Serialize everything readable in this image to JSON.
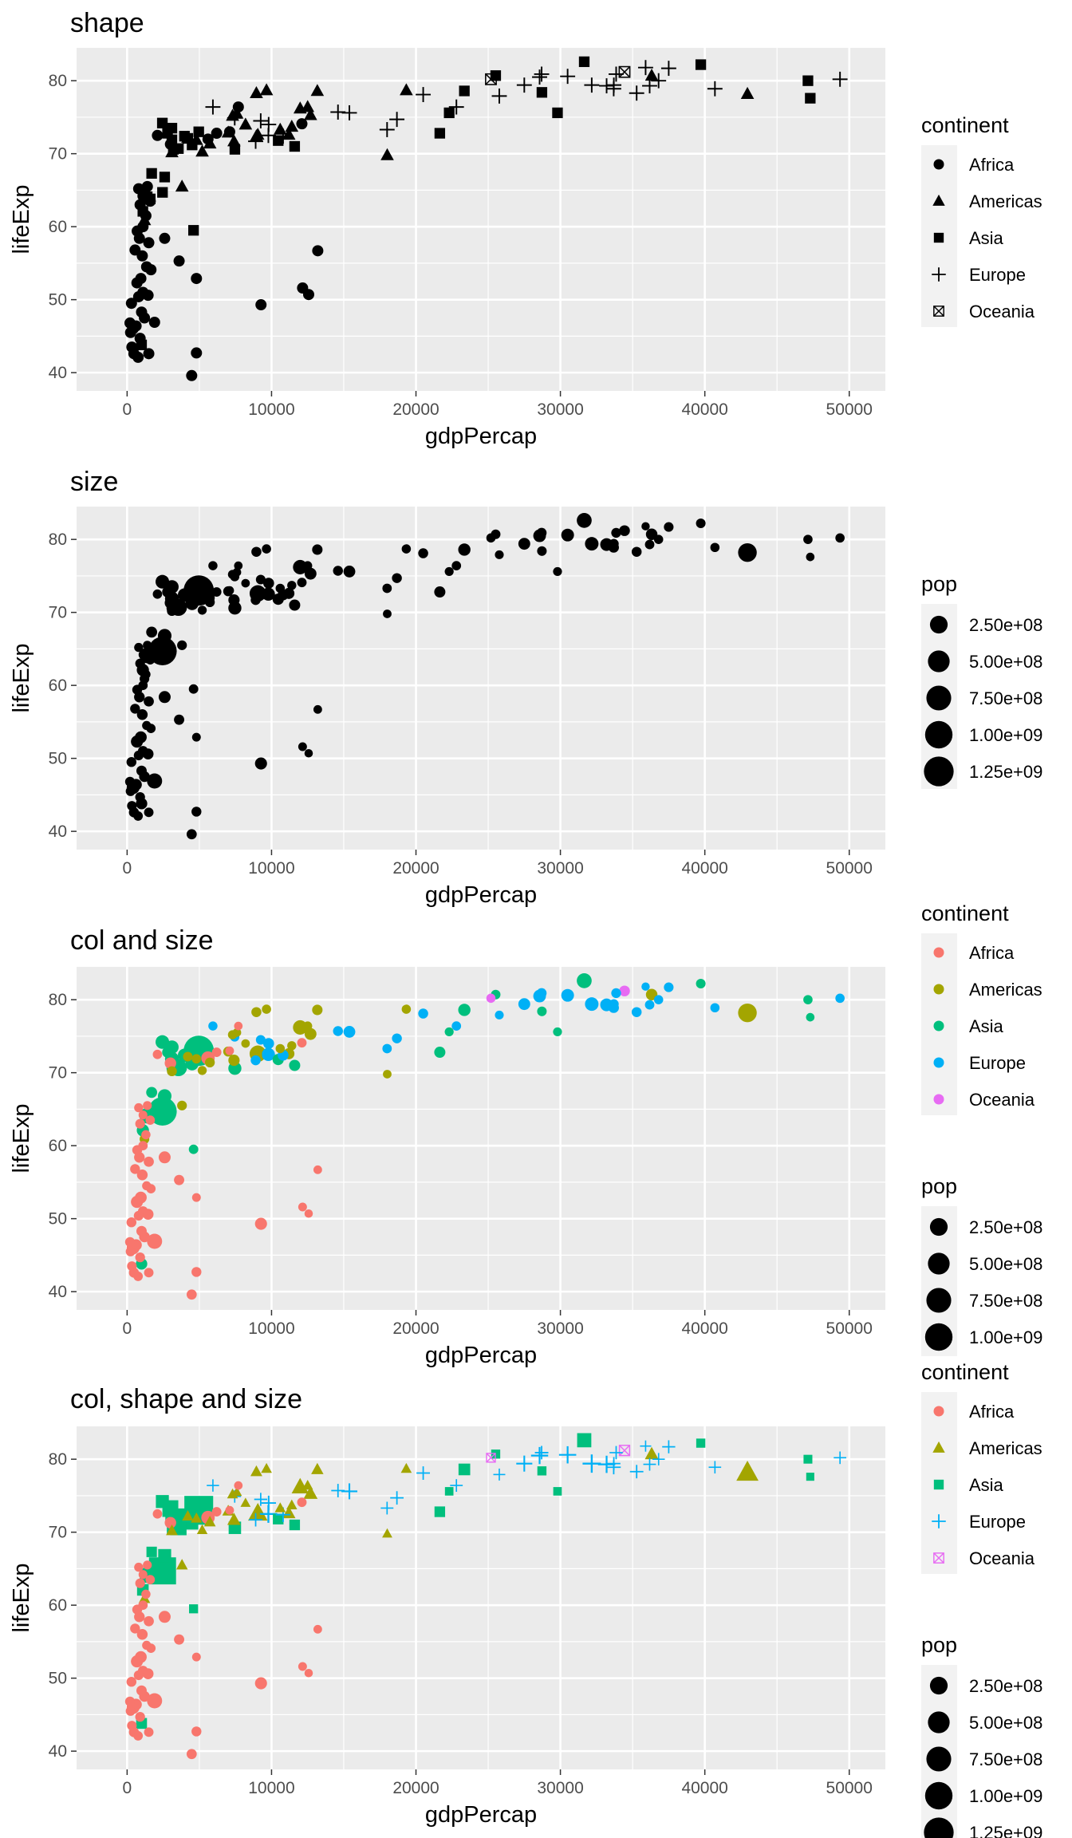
{
  "continents": [
    "Africa",
    "Americas",
    "Asia",
    "Europe",
    "Oceania"
  ],
  "colors": {
    "Africa": "#F8766D",
    "Americas": "#A3A500",
    "Asia": "#00BF7D",
    "Europe": "#00B0F6",
    "Oceania": "#E76BF3",
    "mono": "#000000",
    "panel_bg": "#EBEBEB",
    "grid": "#FFFFFF"
  },
  "shapes": {
    "Africa": "circle",
    "Americas": "triangle",
    "Asia": "square",
    "Europe": "plus",
    "Oceania": "square-cross"
  },
  "legends": {
    "continent_title": "continent",
    "pop_title": "pop",
    "pop_breaks": [
      250000000,
      500000000,
      750000000,
      1000000000,
      1250000000
    ],
    "pop_labels": [
      "2.50e+08",
      "5.00e+08",
      "7.50e+08",
      "1.00e+09",
      "1.25e+09"
    ],
    "pop_labels_short": [
      "2.50e+08",
      "5.00e+08",
      "7.50e+08",
      "1.00e+09"
    ]
  },
  "chart_data": [
    {
      "type": "scatter",
      "title": "shape",
      "xlabel": "gdpPercap",
      "ylabel": "lifeExp",
      "xlim": [
        -3500,
        52500
      ],
      "ylim": [
        37.5,
        84.5
      ],
      "x_ticks": [
        0,
        10000,
        20000,
        30000,
        40000,
        50000
      ],
      "x_tick_labels": [
        "0",
        "10000",
        "20000",
        "30000",
        "40000",
        "50000"
      ],
      "y_ticks": [
        40,
        50,
        60,
        70,
        80
      ],
      "y_tick_labels": [
        "40",
        "50",
        "60",
        "70",
        "80"
      ],
      "aesthetics": {
        "color": false,
        "shape": true,
        "size": false
      },
      "legend": "right",
      "grid": true
    },
    {
      "type": "scatter",
      "title": "size",
      "xlabel": "gdpPercap",
      "ylabel": "lifeExp",
      "xlim": [
        -3500,
        52500
      ],
      "ylim": [
        37.5,
        84.5
      ],
      "x_ticks": [
        0,
        10000,
        20000,
        30000,
        40000,
        50000
      ],
      "x_tick_labels": [
        "0",
        "10000",
        "20000",
        "30000",
        "40000",
        "50000"
      ],
      "y_ticks": [
        40,
        50,
        60,
        70,
        80
      ],
      "y_tick_labels": [
        "40",
        "50",
        "60",
        "70",
        "80"
      ],
      "aesthetics": {
        "color": false,
        "shape": false,
        "size": true
      },
      "legend": "right",
      "grid": true
    },
    {
      "type": "scatter",
      "title": "col and size",
      "xlabel": "gdpPercap",
      "ylabel": "lifeExp",
      "xlim": [
        -3500,
        52500
      ],
      "ylim": [
        37.5,
        84.5
      ],
      "x_ticks": [
        0,
        10000,
        20000,
        30000,
        40000,
        50000
      ],
      "x_tick_labels": [
        "0",
        "10000",
        "20000",
        "30000",
        "40000",
        "50000"
      ],
      "y_ticks": [
        40,
        50,
        60,
        70,
        80
      ],
      "y_tick_labels": [
        "40",
        "50",
        "60",
        "70",
        "80"
      ],
      "aesthetics": {
        "color": true,
        "shape": false,
        "size": true
      },
      "legend": "right",
      "grid": true
    },
    {
      "type": "scatter",
      "title": "col, shape and size",
      "xlabel": "gdpPercap",
      "ylabel": "lifeExp",
      "xlim": [
        -3500,
        52500
      ],
      "ylim": [
        37.5,
        84.5
      ],
      "x_ticks": [
        0,
        10000,
        20000,
        30000,
        40000,
        50000
      ],
      "x_tick_labels": [
        "0",
        "10000",
        "20000",
        "30000",
        "40000",
        "50000"
      ],
      "y_ticks": [
        40,
        50,
        60,
        70,
        80
      ],
      "y_tick_labels": [
        "40",
        "50",
        "60",
        "70",
        "80"
      ],
      "aesthetics": {
        "color": true,
        "shape": true,
        "size": true
      },
      "legend": "right",
      "grid": true
    }
  ],
  "points": [
    {
      "c": "Africa",
      "x": 4470,
      "y": 39.6,
      "pop": 12400000
    },
    {
      "c": "Africa",
      "x": 4800,
      "y": 42.7,
      "pop": 10000000
    },
    {
      "c": "Africa",
      "x": 470,
      "y": 42.6,
      "pop": 11000000
    },
    {
      "c": "Africa",
      "x": 760,
      "y": 42.1,
      "pop": 5700000
    },
    {
      "c": "Africa",
      "x": 1500,
      "y": 42.6,
      "pop": 6100000
    },
    {
      "c": "Africa",
      "x": 330,
      "y": 43.5,
      "pop": 7000000
    },
    {
      "c": "Africa",
      "x": 900,
      "y": 44.7,
      "pop": 9000000
    },
    {
      "c": "Africa",
      "x": 240,
      "y": 45.5,
      "pop": 8000000
    },
    {
      "c": "Africa",
      "x": 415,
      "y": 46.0,
      "pop": 64000000
    },
    {
      "c": "Africa",
      "x": 620,
      "y": 46.4,
      "pop": 33000000
    },
    {
      "c": "Africa",
      "x": 200,
      "y": 46.8,
      "pop": 9000000
    },
    {
      "c": "Africa",
      "x": 1200,
      "y": 47.5,
      "pop": 20000000
    },
    {
      "c": "Africa",
      "x": 1900,
      "y": 46.9,
      "pop": 135000000
    },
    {
      "c": "Africa",
      "x": 1000,
      "y": 48.3,
      "pop": 15000000
    },
    {
      "c": "Africa",
      "x": 300,
      "y": 49.5,
      "pop": 10000000
    },
    {
      "c": "Africa",
      "x": 800,
      "y": 50.4,
      "pop": 8500000
    },
    {
      "c": "Africa",
      "x": 1100,
      "y": 51.0,
      "pop": 12000000
    },
    {
      "c": "Africa",
      "x": 1450,
      "y": 50.6,
      "pop": 23000000
    },
    {
      "c": "Africa",
      "x": 680,
      "y": 52.3,
      "pop": 44000000
    },
    {
      "c": "Africa",
      "x": 950,
      "y": 52.9,
      "pop": 38000000
    },
    {
      "c": "Africa",
      "x": 4800,
      "y": 52.9,
      "pop": 1600000
    },
    {
      "c": "Africa",
      "x": 1650,
      "y": 54.1,
      "pop": 4500000
    },
    {
      "c": "Africa",
      "x": 1350,
      "y": 54.5,
      "pop": 3100000
    },
    {
      "c": "Africa",
      "x": 3600,
      "y": 55.3,
      "pop": 14000000
    },
    {
      "c": "Africa",
      "x": 1050,
      "y": 56.0,
      "pop": 20000000
    },
    {
      "c": "Africa",
      "x": 550,
      "y": 56.8,
      "pop": 9500000
    },
    {
      "c": "Africa",
      "x": 13200,
      "y": 56.7,
      "pop": 1100000
    },
    {
      "c": "Africa",
      "x": 1500,
      "y": 57.8,
      "pop": 12500000
    },
    {
      "c": "Africa",
      "x": 850,
      "y": 58.4,
      "pop": 19000000
    },
    {
      "c": "Africa",
      "x": 2600,
      "y": 58.4,
      "pop": 42000000
    },
    {
      "c": "Africa",
      "x": 700,
      "y": 59.4,
      "pop": 10000000
    },
    {
      "c": "Africa",
      "x": 1100,
      "y": 60.0,
      "pop": 5300000
    },
    {
      "c": "Africa",
      "x": 9270,
      "y": 49.3,
      "pop": 44000000
    },
    {
      "c": "Africa",
      "x": 12150,
      "y": 51.6,
      "pop": 1500000
    },
    {
      "c": "Africa",
      "x": 12570,
      "y": 50.7,
      "pop": 500000
    },
    {
      "c": "Africa",
      "x": 1300,
      "y": 61.5,
      "pop": 4000000
    },
    {
      "c": "Africa",
      "x": 900,
      "y": 63.0,
      "pop": 8000000
    },
    {
      "c": "Africa",
      "x": 1600,
      "y": 63.5,
      "pop": 5000000
    },
    {
      "c": "Africa",
      "x": 1100,
      "y": 64.2,
      "pop": 2000000
    },
    {
      "c": "Africa",
      "x": 800,
      "y": 65.2,
      "pop": 3000000
    },
    {
      "c": "Africa",
      "x": 1400,
      "y": 65.5,
      "pop": 2500000
    },
    {
      "c": "Africa",
      "x": 3000,
      "y": 71.3,
      "pop": 33000000
    },
    {
      "c": "Africa",
      "x": 5600,
      "y": 72.0,
      "pop": 80000000
    },
    {
      "c": "Africa",
      "x": 6200,
      "y": 72.8,
      "pop": 6000000
    },
    {
      "c": "Africa",
      "x": 7100,
      "y": 73.0,
      "pop": 1200000
    },
    {
      "c": "Africa",
      "x": 12100,
      "y": 74.1,
      "pop": 6000000
    },
    {
      "c": "Africa",
      "x": 7700,
      "y": 76.4,
      "pop": 800000
    },
    {
      "c": "Africa",
      "x": 2100,
      "y": 72.5,
      "pop": 5000000
    },
    {
      "c": "Americas",
      "x": 5730,
      "y": 71.4,
      "pop": 9000000
    },
    {
      "c": "Americas",
      "x": 7000,
      "y": 72.9,
      "pop": 11000000
    },
    {
      "c": "Americas",
      "x": 3800,
      "y": 65.5,
      "pop": 8500000
    },
    {
      "c": "Americas",
      "x": 1200,
      "y": 60.9,
      "pop": 8000000
    },
    {
      "c": "Americas",
      "x": 3100,
      "y": 70.2,
      "pop": 10000000
    },
    {
      "c": "Americas",
      "x": 4200,
      "y": 72.2,
      "pop": 7000000
    },
    {
      "c": "Americas",
      "x": 4800,
      "y": 71.9,
      "pop": 6000000
    },
    {
      "c": "Americas",
      "x": 5200,
      "y": 70.3,
      "pop": 3000000
    },
    {
      "c": "Americas",
      "x": 7400,
      "y": 71.7,
      "pop": 29000000
    },
    {
      "c": "Americas",
      "x": 7300,
      "y": 75.2,
      "pop": 3900000
    },
    {
      "c": "Americas",
      "x": 8950,
      "y": 72.4,
      "pop": 28000000
    },
    {
      "c": "Americas",
      "x": 9050,
      "y": 72.6,
      "pop": 190000000
    },
    {
      "c": "Americas",
      "x": 9650,
      "y": 78.7,
      "pop": 4100000
    },
    {
      "c": "Americas",
      "x": 8950,
      "y": 78.3,
      "pop": 11000000
    },
    {
      "c": "Americas",
      "x": 10600,
      "y": 73.3,
      "pop": 4000000
    },
    {
      "c": "Americas",
      "x": 11400,
      "y": 73.7,
      "pop": 3400000
    },
    {
      "c": "Americas",
      "x": 11980,
      "y": 76.2,
      "pop": 108000000
    },
    {
      "c": "Americas",
      "x": 12700,
      "y": 75.3,
      "pop": 40000000
    },
    {
      "c": "Americas",
      "x": 13170,
      "y": 78.6,
      "pop": 16000000
    },
    {
      "c": "Americas",
      "x": 12500,
      "y": 76.4,
      "pop": 3300000
    },
    {
      "c": "Americas",
      "x": 11200,
      "y": 72.6,
      "pop": 26000000
    },
    {
      "c": "Americas",
      "x": 18010,
      "y": 69.8,
      "pop": 1100000
    },
    {
      "c": "Americas",
      "x": 19330,
      "y": 78.7,
      "pop": 3900000
    },
    {
      "c": "Americas",
      "x": 36320,
      "y": 80.7,
      "pop": 33000000
    },
    {
      "c": "Americas",
      "x": 42950,
      "y": 78.2,
      "pop": 301000000
    },
    {
      "c": "Americas",
      "x": 7600,
      "y": 75.5,
      "pop": 1000000
    },
    {
      "c": "Americas",
      "x": 8200,
      "y": 74.0,
      "pop": 900000
    },
    {
      "c": "Asia",
      "x": 2450,
      "y": 64.7,
      "pop": 1110000000
    },
    {
      "c": "Asia",
      "x": 4960,
      "y": 73.0,
      "pop": 1318000000
    },
    {
      "c": "Asia",
      "x": 1390,
      "y": 64.1,
      "pop": 150000000
    },
    {
      "c": "Asia",
      "x": 1090,
      "y": 62.1,
      "pop": 47000000
    },
    {
      "c": "Asia",
      "x": 1600,
      "y": 63.8,
      "pop": 28000000
    },
    {
      "c": "Asia",
      "x": 2600,
      "y": 66.8,
      "pop": 85000000
    },
    {
      "c": "Asia",
      "x": 1700,
      "y": 67.3,
      "pop": 24000000
    },
    {
      "c": "Asia",
      "x": 2800,
      "y": 72.8,
      "pop": 22000000
    },
    {
      "c": "Asia",
      "x": 3200,
      "y": 70.6,
      "pop": 86000000
    },
    {
      "c": "Asia",
      "x": 2440,
      "y": 74.2,
      "pop": 85000000
    },
    {
      "c": "Asia",
      "x": 3550,
      "y": 70.7,
      "pop": 224000000
    },
    {
      "c": "Asia",
      "x": 4500,
      "y": 71.2,
      "pop": 65000000
    },
    {
      "c": "Asia",
      "x": 3100,
      "y": 71.9,
      "pop": 90000000
    },
    {
      "c": "Asia",
      "x": 4600,
      "y": 59.5,
      "pop": 6000000
    },
    {
      "c": "Asia",
      "x": 3970,
      "y": 72.4,
      "pop": 70000000
    },
    {
      "c": "Asia",
      "x": 7460,
      "y": 70.6,
      "pop": 69000000
    },
    {
      "c": "Asia",
      "x": 10460,
      "y": 71.8,
      "pop": 28000000
    },
    {
      "c": "Asia",
      "x": 11600,
      "y": 71.0,
      "pop": 27000000
    },
    {
      "c": "Asia",
      "x": 4200,
      "y": 72.1,
      "pop": 20000000
    },
    {
      "c": "Asia",
      "x": 21650,
      "y": 72.8,
      "pop": 27000000
    },
    {
      "c": "Asia",
      "x": 22300,
      "y": 75.6,
      "pop": 2500000
    },
    {
      "c": "Asia",
      "x": 23350,
      "y": 78.6,
      "pop": 49000000
    },
    {
      "c": "Asia",
      "x": 25520,
      "y": 80.7,
      "pop": 6400000
    },
    {
      "c": "Asia",
      "x": 28720,
      "y": 78.4,
      "pop": 6900000
    },
    {
      "c": "Asia",
      "x": 29800,
      "y": 75.6,
      "pop": 2500000
    },
    {
      "c": "Asia",
      "x": 31650,
      "y": 82.6,
      "pop": 127000000
    },
    {
      "c": "Asia",
      "x": 39720,
      "y": 82.2,
      "pop": 6980000
    },
    {
      "c": "Asia",
      "x": 47140,
      "y": 80.0,
      "pop": 4500000
    },
    {
      "c": "Asia",
      "x": 47300,
      "y": 77.6,
      "pop": 700000
    },
    {
      "c": "Asia",
      "x": 1000,
      "y": 43.8,
      "pop": 31000000
    },
    {
      "c": "Asia",
      "x": 3100,
      "y": 73.5,
      "pop": 80000000
    },
    {
      "c": "Europe",
      "x": 5940,
      "y": 76.4,
      "pop": 3600000
    },
    {
      "c": "Europe",
      "x": 7450,
      "y": 74.9,
      "pop": 4500000
    },
    {
      "c": "Europe",
      "x": 8900,
      "y": 71.7,
      "pop": 10000000
    },
    {
      "c": "Europe",
      "x": 9250,
      "y": 74.5,
      "pop": 7300000
    },
    {
      "c": "Europe",
      "x": 9800,
      "y": 74.0,
      "pop": 22000000
    },
    {
      "c": "Europe",
      "x": 9780,
      "y": 72.5,
      "pop": 71000000
    },
    {
      "c": "Europe",
      "x": 10800,
      "y": 72.4,
      "pop": 22000000
    },
    {
      "c": "Europe",
      "x": 14600,
      "y": 75.7,
      "pop": 10200000
    },
    {
      "c": "Europe",
      "x": 15390,
      "y": 75.6,
      "pop": 38500000
    },
    {
      "c": "Europe",
      "x": 18000,
      "y": 73.3,
      "pop": 5400000
    },
    {
      "c": "Europe",
      "x": 18680,
      "y": 74.7,
      "pop": 10000000
    },
    {
      "c": "Europe",
      "x": 20500,
      "y": 78.1,
      "pop": 10600000
    },
    {
      "c": "Europe",
      "x": 22800,
      "y": 76.4,
      "pop": 5000000
    },
    {
      "c": "Europe",
      "x": 25770,
      "y": 77.9,
      "pop": 2000000
    },
    {
      "c": "Europe",
      "x": 27500,
      "y": 79.4,
      "pop": 40000000
    },
    {
      "c": "Europe",
      "x": 28560,
      "y": 80.5,
      "pop": 58000000
    },
    {
      "c": "Europe",
      "x": 28700,
      "y": 80.9,
      "pop": 10700000
    },
    {
      "c": "Europe",
      "x": 30500,
      "y": 80.6,
      "pop": 60000000
    },
    {
      "c": "Europe",
      "x": 32170,
      "y": 79.4,
      "pop": 82000000
    },
    {
      "c": "Europe",
      "x": 33200,
      "y": 79.3,
      "pop": 60800000
    },
    {
      "c": "Europe",
      "x": 33700,
      "y": 79.4,
      "pop": 8200000
    },
    {
      "c": "Europe",
      "x": 33860,
      "y": 80.9,
      "pop": 9000000
    },
    {
      "c": "Europe",
      "x": 33690,
      "y": 78.9,
      "pop": 16600000
    },
    {
      "c": "Europe",
      "x": 35280,
      "y": 78.3,
      "pop": 10400000
    },
    {
      "c": "Europe",
      "x": 35900,
      "y": 81.8,
      "pop": 300000
    },
    {
      "c": "Europe",
      "x": 36800,
      "y": 80.0,
      "pop": 4100000
    },
    {
      "c": "Europe",
      "x": 37500,
      "y": 81.7,
      "pop": 7500000
    },
    {
      "c": "Europe",
      "x": 36180,
      "y": 79.3,
      "pop": 5400000
    },
    {
      "c": "Europe",
      "x": 40700,
      "y": 78.9,
      "pop": 4100000
    },
    {
      "c": "Europe",
      "x": 49360,
      "y": 80.2,
      "pop": 4600000
    },
    {
      "c": "Oceania",
      "x": 25190,
      "y": 80.2,
      "pop": 4100000
    },
    {
      "c": "Oceania",
      "x": 34440,
      "y": 81.2,
      "pop": 20400000
    }
  ]
}
